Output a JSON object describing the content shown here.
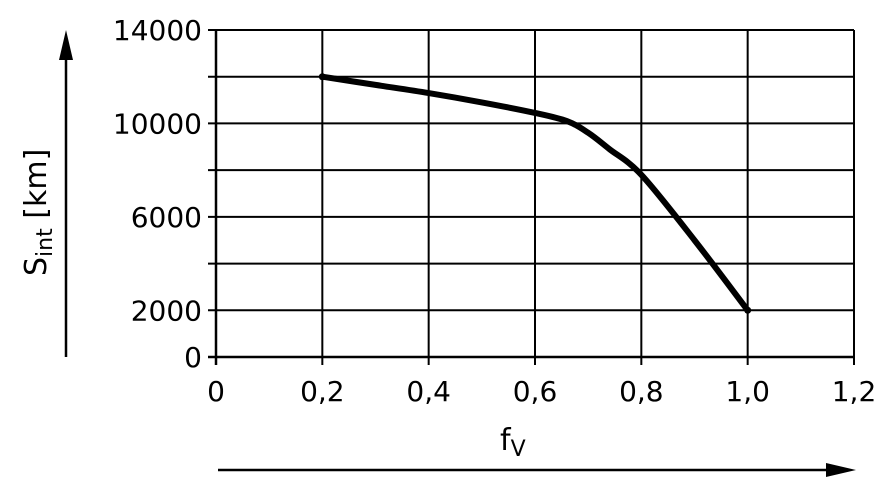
{
  "chart_data": {
    "type": "line",
    "xlabel": {
      "main": "f",
      "sub": "V"
    },
    "ylabel": {
      "main": "S",
      "sub": "int",
      "unit": " [km]"
    },
    "x_ticks": [
      "0",
      "0,2",
      "0,4",
      "0,6",
      "0,8",
      "1,0",
      "1,2"
    ],
    "x_tick_values": [
      0,
      0.2,
      0.4,
      0.6,
      0.8,
      1.0,
      1.2
    ],
    "y_ticks": [
      "0",
      "2000",
      "6000",
      "10000",
      "14000"
    ],
    "y_tick_values": [
      0,
      2000,
      6000,
      10000,
      14000
    ],
    "y_gridlines": [
      0,
      2000,
      4000,
      6000,
      8000,
      10000,
      12000,
      14000
    ],
    "xlim": [
      0,
      1.2
    ],
    "ylim": [
      0,
      14000
    ],
    "grid": true,
    "series": [
      {
        "x": [
          0.2,
          0.3,
          0.4,
          0.5,
          0.6,
          0.66,
          0.7,
          0.74,
          0.8,
          0.9,
          1.0
        ],
        "y": [
          12000,
          11650,
          11300,
          10900,
          10450,
          10100,
          9600,
          8900,
          7800,
          5000,
          2000
        ]
      }
    ]
  }
}
